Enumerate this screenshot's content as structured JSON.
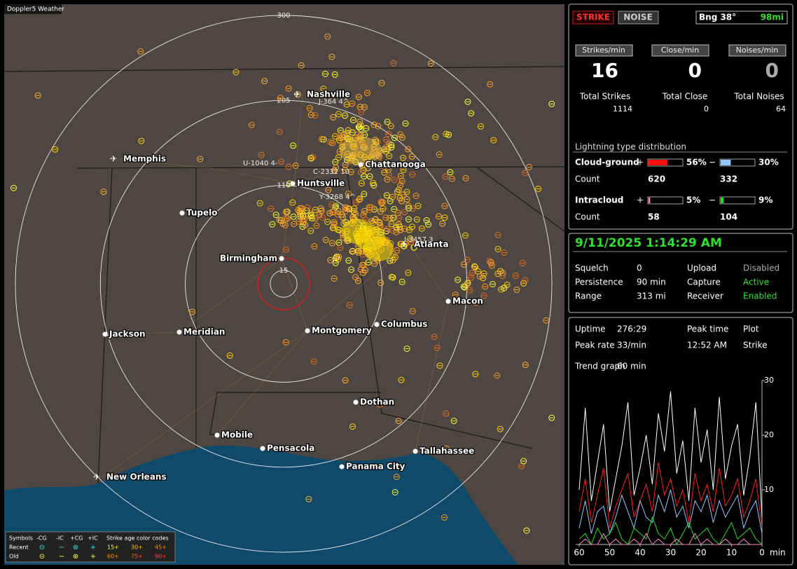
{
  "header": {
    "title": "Doppler5 Weather"
  },
  "map": {
    "range_rings": [
      300,
      205,
      110,
      15
    ],
    "cities": [
      "Nashville",
      "Memphis",
      "Chattanooga",
      "Huntsville",
      "Tupelo",
      "Birmingham",
      "Atlanta",
      "Macon",
      "Jackson",
      "Meridian",
      "Montgomery",
      "Columbus",
      "Dothan",
      "Mobile",
      "Pensacola",
      "Tallahassee",
      "Panama City",
      "New Orleans"
    ],
    "strike_labels": [
      "J-364  4^",
      "U-1040  4-",
      "C-2332  10",
      "Y-3268  4^",
      "I-3457  3"
    ]
  },
  "legend": {
    "symbols_label": "Symbols",
    "types": [
      "-CG",
      "-IC",
      "+CG",
      "+IC"
    ],
    "age_label": "Strike age color codes",
    "rows": [
      "Recent",
      "Old"
    ],
    "recent_ages": [
      "15+",
      "30+",
      "45+"
    ],
    "old_ages": [
      "60+",
      "75+",
      "90+"
    ]
  },
  "panel": {
    "buttons": {
      "strike": "STRIKE",
      "noise": "NOISE",
      "bearing": "Bng 38°",
      "distance": "98mi"
    },
    "rates": [
      {
        "label": "Strikes/min",
        "value": 16
      },
      {
        "label": "Close/min",
        "value": 0
      },
      {
        "label": "Noises/min",
        "value": 0
      }
    ],
    "totals": [
      {
        "label": "Total Strikes",
        "value": 1114
      },
      {
        "label": "Total Close",
        "value": 0
      },
      {
        "label": "Total Noises",
        "value": 64
      }
    ],
    "distribution": {
      "title": "Lightning type distribution",
      "signs": [
        "+",
        "−"
      ],
      "count_label": "Count",
      "rows": [
        {
          "name": "Cloud-ground",
          "positive": {
            "value": 56,
            "label": "56%"
          },
          "negative": {
            "value": 30,
            "label": "30%"
          },
          "counts": [
            620,
            332
          ]
        },
        {
          "name": "Intracloud",
          "positive": {
            "value": 5,
            "label": "5%"
          },
          "negative": {
            "value": 9,
            "label": "9%"
          },
          "counts": [
            58,
            104
          ]
        }
      ]
    },
    "status": {
      "datetime": "9/11/2025 1:14:29 AM",
      "rows": [
        [
          "Squelch",
          "0",
          "Upload",
          "Disabled"
        ],
        [
          "Persistence",
          "90 min",
          "Capture",
          "Active"
        ],
        [
          "Range",
          "313 mi",
          "Receiver",
          "Enabled"
        ]
      ]
    },
    "stats": {
      "rows": [
        [
          "Uptime",
          "276:29",
          "Peak time",
          "Plot"
        ],
        [
          "Peak rate",
          "33/min",
          "12:52 AM",
          "Strike"
        ]
      ],
      "trend": [
        "Trend graph",
        "60 min"
      ]
    }
  },
  "trend_chart": {
    "type": "line",
    "x": [
      60,
      58,
      56,
      54,
      52,
      50,
      48,
      46,
      44,
      42,
      40,
      38,
      36,
      34,
      32,
      30,
      28,
      26,
      24,
      22,
      20,
      18,
      16,
      14,
      12,
      10,
      8,
      6,
      4,
      2,
      0
    ],
    "xlim": [
      60,
      0
    ],
    "xticks": [
      60,
      50,
      40,
      30,
      20,
      10,
      0
    ],
    "x_unit": "min",
    "ylim": [
      0,
      30
    ],
    "yticks": [
      10,
      20,
      30
    ],
    "series": [
      {
        "color": "#ffffff",
        "values": [
          10,
          25,
          8,
          15,
          22,
          6,
          12,
          18,
          26,
          9,
          14,
          20,
          11,
          24,
          17,
          28,
          13,
          19,
          8,
          25,
          15,
          21,
          10,
          27,
          12,
          18,
          22,
          9,
          16,
          26,
          5
        ]
      },
      {
        "color": "#ff2020",
        "values": [
          6,
          12,
          4,
          9,
          14,
          3,
          7,
          10,
          13,
          5,
          8,
          11,
          6,
          15,
          9,
          12,
          7,
          10,
          4,
          13,
          8,
          11,
          6,
          14,
          7,
          9,
          12,
          5,
          8,
          12,
          3
        ]
      },
      {
        "color": "#90c8ff",
        "values": [
          3,
          8,
          2,
          6,
          7,
          2,
          5,
          9,
          6,
          3,
          8,
          5,
          4,
          9,
          6,
          10,
          5,
          7,
          3,
          8,
          6,
          9,
          4,
          8,
          5,
          7,
          9,
          3,
          6,
          8,
          2
        ]
      },
      {
        "color": "#20e020",
        "values": [
          1,
          2,
          0,
          3,
          1,
          2,
          4,
          1,
          0,
          3,
          2,
          1,
          5,
          2,
          1,
          3,
          0,
          2,
          4,
          1,
          2,
          3,
          1,
          0,
          2,
          4,
          1,
          2,
          3,
          1,
          0
        ]
      },
      {
        "color": "#ff80c0",
        "values": [
          0,
          1,
          0,
          0,
          2,
          0,
          1,
          0,
          0,
          1,
          0,
          2,
          0,
          1,
          0,
          0,
          1,
          0,
          0,
          2,
          0,
          1,
          0,
          0,
          1,
          0,
          0,
          1,
          0,
          0,
          0
        ]
      }
    ]
  }
}
